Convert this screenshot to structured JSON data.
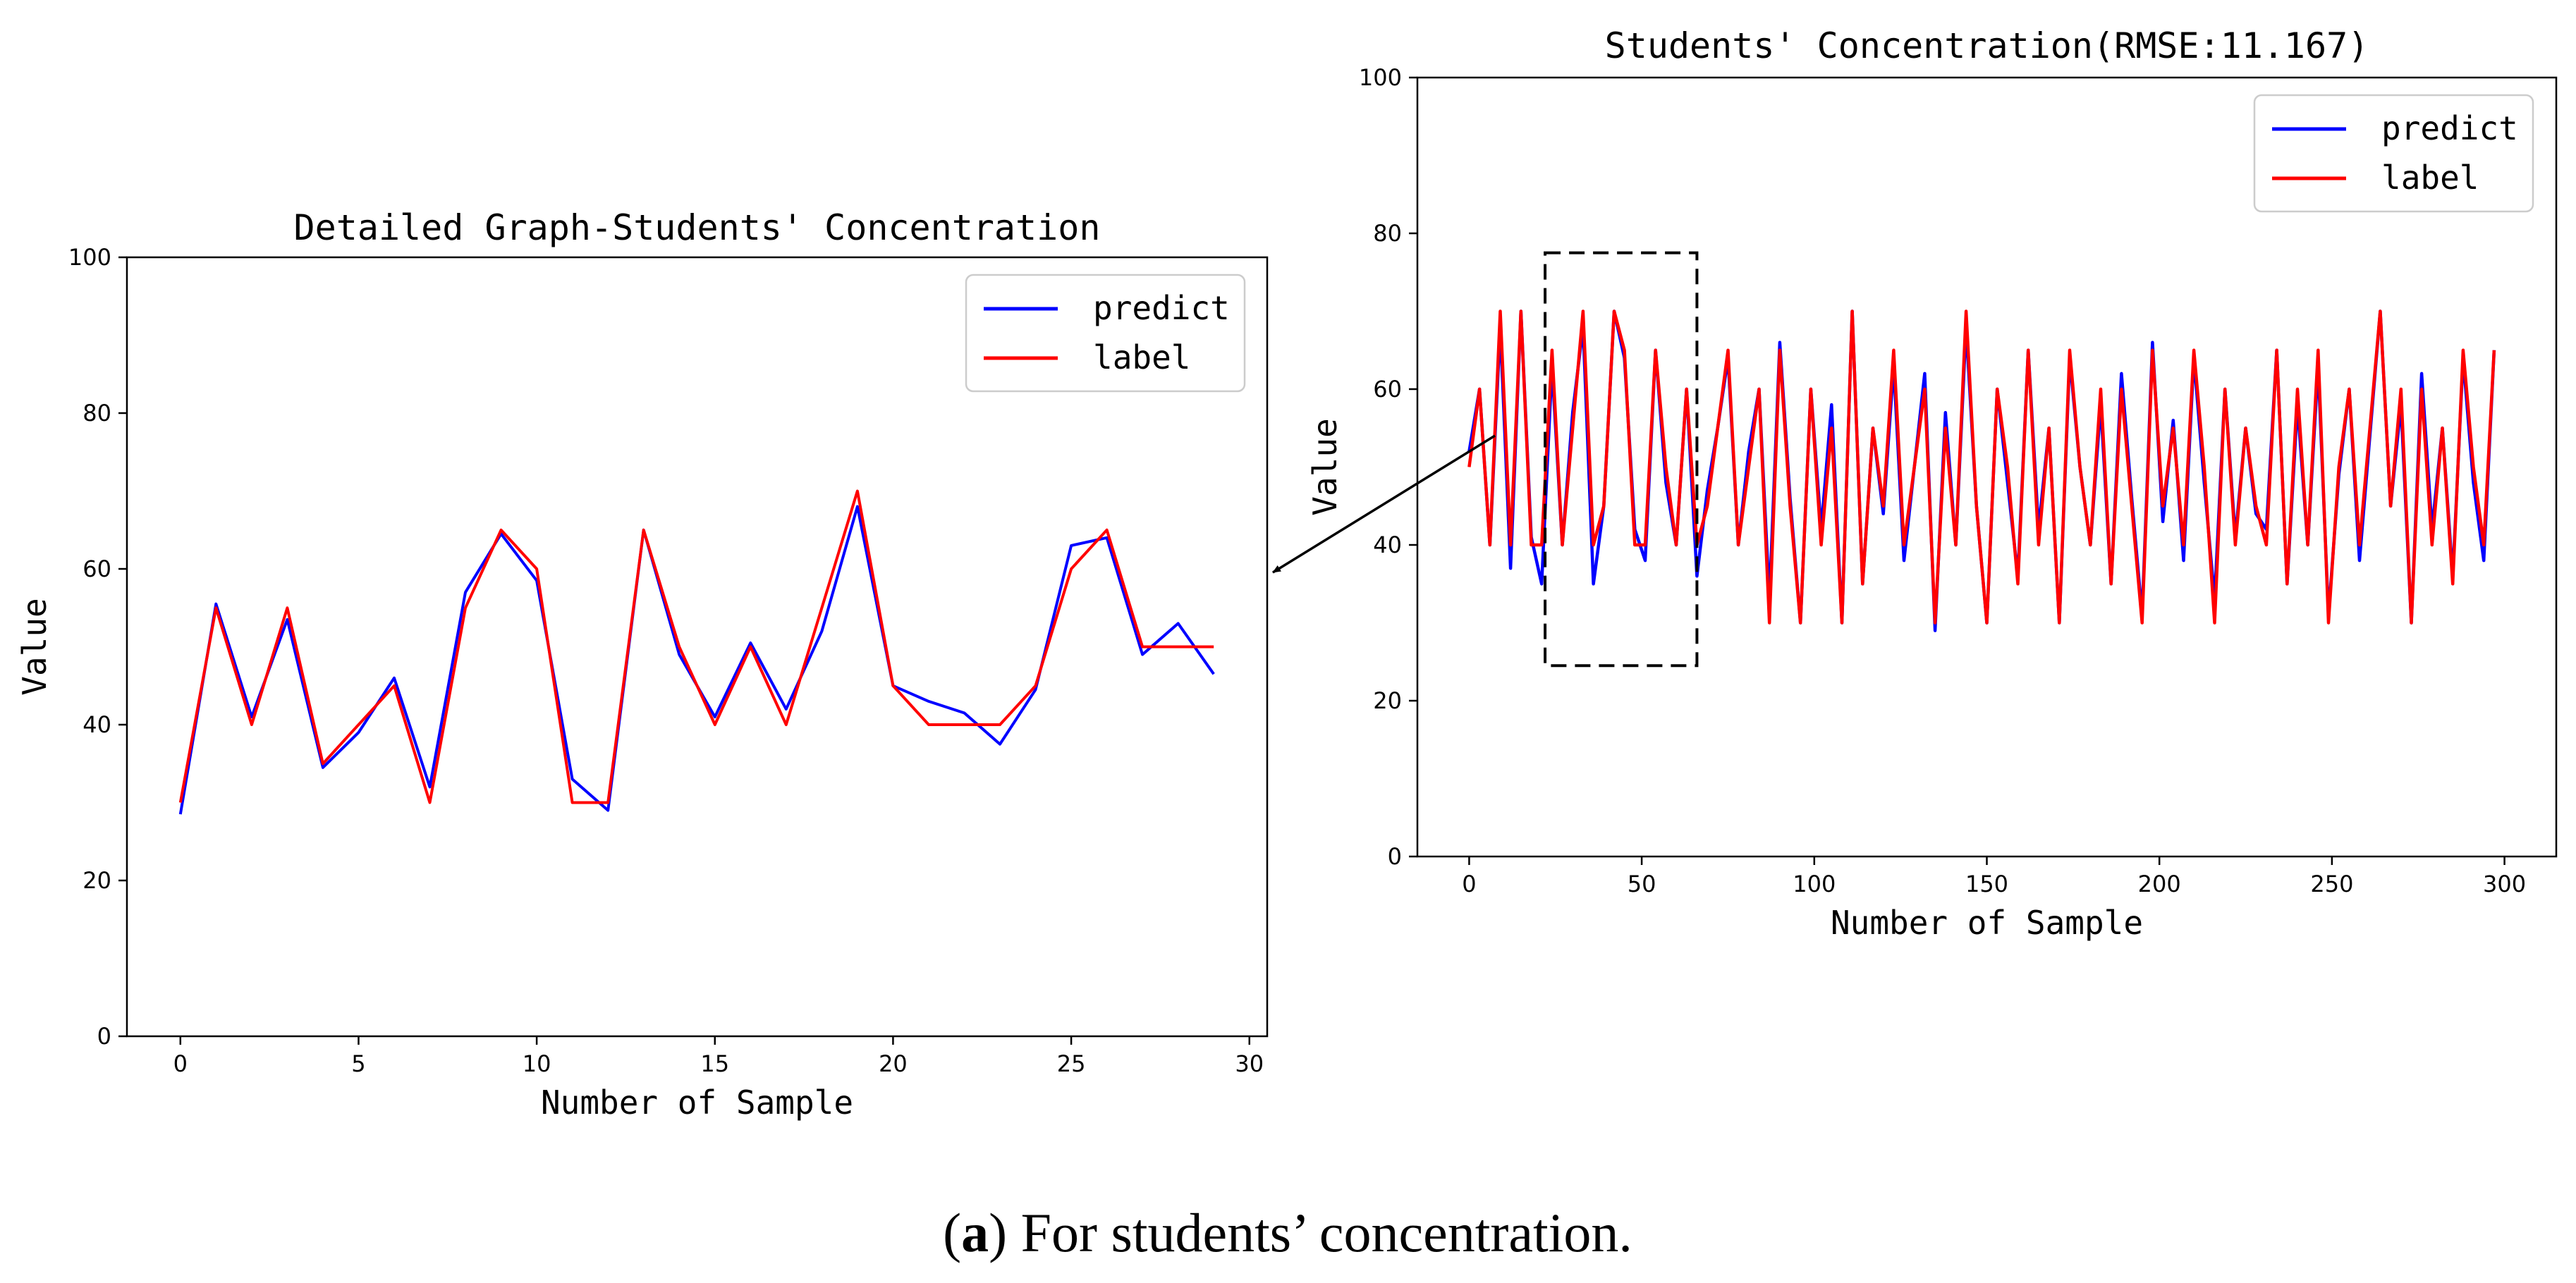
{
  "colors": {
    "predict": "#0000ff",
    "label": "#ff0000",
    "axis": "#000000"
  },
  "figure": {
    "caption_letter": "a",
    "caption_text": " For students’ concentration."
  },
  "chart_data": [
    {
      "type": "line",
      "title": "Detailed Graph-Students' Concentration",
      "xlabel": "Number of Sample",
      "ylabel": "Value",
      "xlim": [
        -1.5,
        30.5
      ],
      "ylim": [
        0,
        100
      ],
      "xticks": [
        0,
        5,
        10,
        15,
        20,
        25,
        30
      ],
      "yticks": [
        0,
        20,
        40,
        60,
        80,
        100
      ],
      "legend_position": "top-right",
      "series": [
        {
          "name": "predict",
          "color": "#0000ff",
          "x": [
            0,
            1,
            2,
            3,
            4,
            5,
            6,
            7,
            8,
            9,
            10,
            11,
            12,
            13,
            14,
            15,
            16,
            17,
            18,
            19,
            20,
            21,
            22,
            23,
            24,
            25,
            26,
            27,
            28,
            29
          ],
          "values": [
            28.5,
            55.5,
            41,
            53.5,
            34.5,
            39,
            46,
            32,
            57,
            64.5,
            58.5,
            33,
            29,
            65,
            49,
            41,
            50.5,
            42,
            52,
            68,
            45,
            43,
            41.5,
            37.5,
            44.5,
            63,
            64,
            49,
            53,
            46.5
          ]
        },
        {
          "name": "label",
          "color": "#ff0000",
          "x": [
            0,
            1,
            2,
            3,
            4,
            5,
            6,
            7,
            8,
            9,
            10,
            11,
            12,
            13,
            14,
            15,
            16,
            17,
            18,
            19,
            20,
            21,
            22,
            23,
            24,
            25,
            26,
            27,
            28,
            29
          ],
          "values": [
            30,
            55,
            40,
            55,
            35,
            40,
            45,
            30,
            55,
            65,
            60,
            30,
            30,
            65,
            50,
            40,
            50,
            40,
            55,
            70,
            45,
            40,
            40,
            40,
            45,
            60,
            65,
            50,
            50,
            50
          ]
        }
      ]
    },
    {
      "type": "line",
      "title": "Students' Concentration(RMSE:11.167)",
      "xlabel": "Number of Sample",
      "ylabel": "Value",
      "xlim": [
        -15,
        315
      ],
      "ylim": [
        0,
        100
      ],
      "xticks": [
        0,
        50,
        100,
        150,
        200,
        250,
        300
      ],
      "yticks": [
        0,
        20,
        40,
        60,
        80,
        100
      ],
      "legend_position": "top-right",
      "highlight_box": {
        "x_range": [
          22,
          66
        ],
        "y_range": [
          24.5,
          77.5
        ],
        "style": "dashed"
      },
      "series": [
        {
          "name": "predict",
          "color": "#0000ff",
          "x": [
            0,
            3,
            6,
            9,
            12,
            15,
            18,
            21,
            24,
            27,
            30,
            33,
            36,
            39,
            42,
            45,
            48,
            51,
            54,
            57,
            60,
            63,
            66,
            69,
            72,
            75,
            78,
            81,
            84,
            87,
            90,
            93,
            96,
            99,
            102,
            105,
            108,
            111,
            114,
            117,
            120,
            123,
            126,
            129,
            132,
            135,
            138,
            141,
            144,
            147,
            150,
            153,
            156,
            159,
            162,
            165,
            168,
            171,
            174,
            177,
            180,
            183,
            186,
            189,
            192,
            195,
            198,
            201,
            204,
            207,
            210,
            213,
            216,
            219,
            222,
            225,
            228,
            231,
            234,
            237,
            240,
            243,
            246,
            249,
            252,
            255,
            258,
            261,
            264,
            267,
            270,
            273,
            276,
            279,
            282,
            285,
            288,
            291,
            294,
            297
          ],
          "values": [
            52,
            60,
            40,
            68,
            37,
            70,
            41,
            35,
            63,
            40,
            57,
            68,
            35,
            45,
            70,
            64,
            42,
            38,
            65,
            48,
            40,
            60,
            36,
            47,
            55,
            64,
            40,
            52,
            60,
            33,
            66,
            46,
            30,
            60,
            42,
            58,
            30,
            70,
            35,
            55,
            44,
            63,
            38,
            50,
            62,
            29,
            57,
            40,
            68,
            45,
            30,
            60,
            48,
            36,
            65,
            42,
            55,
            30,
            64,
            50,
            40,
            58,
            35,
            62,
            46,
            31,
            66,
            43,
            56,
            38,
            64,
            48,
            33,
            60,
            41,
            55,
            44,
            42,
            65,
            35,
            58,
            40,
            63,
            31,
            49,
            60,
            38,
            54,
            70,
            45,
            58,
            30,
            62,
            42,
            55,
            36,
            64,
            48,
            38,
            65
          ]
        },
        {
          "name": "label",
          "color": "#ff0000",
          "x": [
            0,
            3,
            6,
            9,
            12,
            15,
            18,
            21,
            24,
            27,
            30,
            33,
            36,
            39,
            42,
            45,
            48,
            51,
            54,
            57,
            60,
            63,
            66,
            69,
            72,
            75,
            78,
            81,
            84,
            87,
            90,
            93,
            96,
            99,
            102,
            105,
            108,
            111,
            114,
            117,
            120,
            123,
            126,
            129,
            132,
            135,
            138,
            141,
            144,
            147,
            150,
            153,
            156,
            159,
            162,
            165,
            168,
            171,
            174,
            177,
            180,
            183,
            186,
            189,
            192,
            195,
            198,
            201,
            204,
            207,
            210,
            213,
            216,
            219,
            222,
            225,
            228,
            231,
            234,
            237,
            240,
            243,
            246,
            249,
            252,
            255,
            258,
            261,
            264,
            267,
            270,
            273,
            276,
            279,
            282,
            285,
            288,
            291,
            294,
            297
          ],
          "values": [
            50,
            60,
            40,
            70,
            40,
            70,
            40,
            40,
            65,
            40,
            55,
            70,
            40,
            45,
            70,
            65,
            40,
            40,
            65,
            50,
            40,
            60,
            40,
            45,
            55,
            65,
            40,
            50,
            60,
            30,
            65,
            45,
            30,
            60,
            40,
            55,
            30,
            70,
            35,
            55,
            45,
            65,
            40,
            50,
            60,
            30,
            55,
            40,
            70,
            45,
            30,
            60,
            50,
            35,
            65,
            40,
            55,
            30,
            65,
            50,
            40,
            60,
            35,
            60,
            45,
            30,
            65,
            45,
            55,
            40,
            65,
            50,
            30,
            60,
            40,
            55,
            45,
            40,
            65,
            35,
            60,
            40,
            65,
            30,
            50,
            60,
            40,
            55,
            70,
            45,
            60,
            30,
            60,
            40,
            55,
            35,
            65,
            50,
            40,
            65
          ]
        }
      ]
    }
  ]
}
